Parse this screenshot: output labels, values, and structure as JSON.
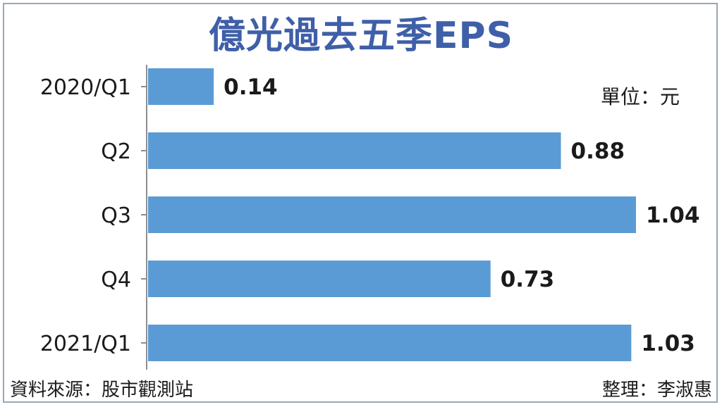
{
  "chart_data": {
    "type": "bar",
    "orientation": "horizontal",
    "title": "億光過去五季EPS",
    "unit_label": "單位：元",
    "categories": [
      "2020/Q1",
      "Q2",
      "Q3",
      "Q4",
      "2021/Q1"
    ],
    "values": [
      0.14,
      0.88,
      1.04,
      0.73,
      1.03
    ],
    "value_labels": [
      "0.14",
      "0.88",
      "1.04",
      "0.73",
      "1.03"
    ],
    "xlim": [
      0,
      1.04
    ],
    "grid": false,
    "bar_color": "#5b9bd5",
    "title_color": "#3f5fa8"
  },
  "footer": {
    "source": "資料來源：股市觀測站",
    "editor": "整理：李淑惠"
  }
}
